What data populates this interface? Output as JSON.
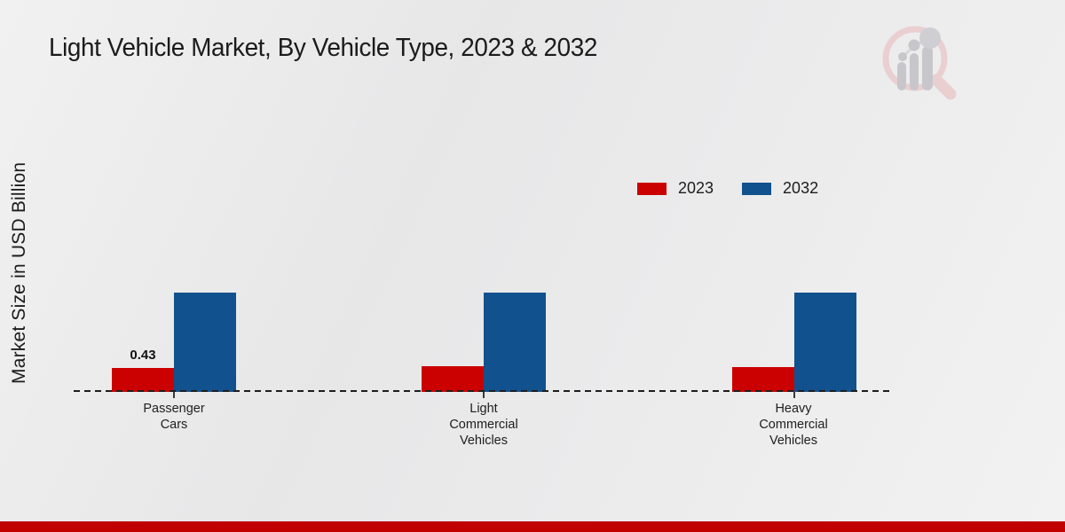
{
  "title": "Light Vehicle Market, By Vehicle Type, 2023 & 2032",
  "y_axis_label": "Market Size in USD Billion",
  "legend": {
    "items": [
      {
        "label": "2023",
        "color": "#cb0101"
      },
      {
        "label": "2032",
        "color": "#11518e"
      }
    ]
  },
  "watermark_icon": "market-research-future-logo",
  "colors": {
    "series_2023": "#cb0101",
    "series_2032": "#11518e",
    "bottom_band": "#c10000",
    "axis_dash": "#1d1d1d",
    "background": "#ebebec"
  },
  "chart_data": {
    "type": "bar",
    "title": "Light Vehicle Market, By Vehicle Type, 2023 & 2032",
    "xlabel": "",
    "ylabel": "Market Size in USD Billion",
    "categories": [
      "Passenger Cars",
      "Light Commercial Vehicles",
      "Heavy Commercial Vehicles"
    ],
    "category_lines": [
      [
        "Passenger",
        "Cars"
      ],
      [
        "Light",
        "Commercial",
        "Vehicles"
      ],
      [
        "Heavy",
        "Commercial",
        "Vehicles"
      ]
    ],
    "series": [
      {
        "name": "2023",
        "color": "#cb0101",
        "values": [
          0.43,
          0.46,
          0.45
        ]
      },
      {
        "name": "2032",
        "color": "#11518e",
        "values": [
          1.77,
          1.77,
          1.77
        ]
      }
    ],
    "data_label": {
      "text": "0.43",
      "series": "2023",
      "category": "Passenger Cars"
    },
    "ylim": [
      0,
      2.5
    ],
    "grid": false,
    "axis_style": "dashed-baseline-only",
    "legend_position": "upper-right-inside"
  }
}
